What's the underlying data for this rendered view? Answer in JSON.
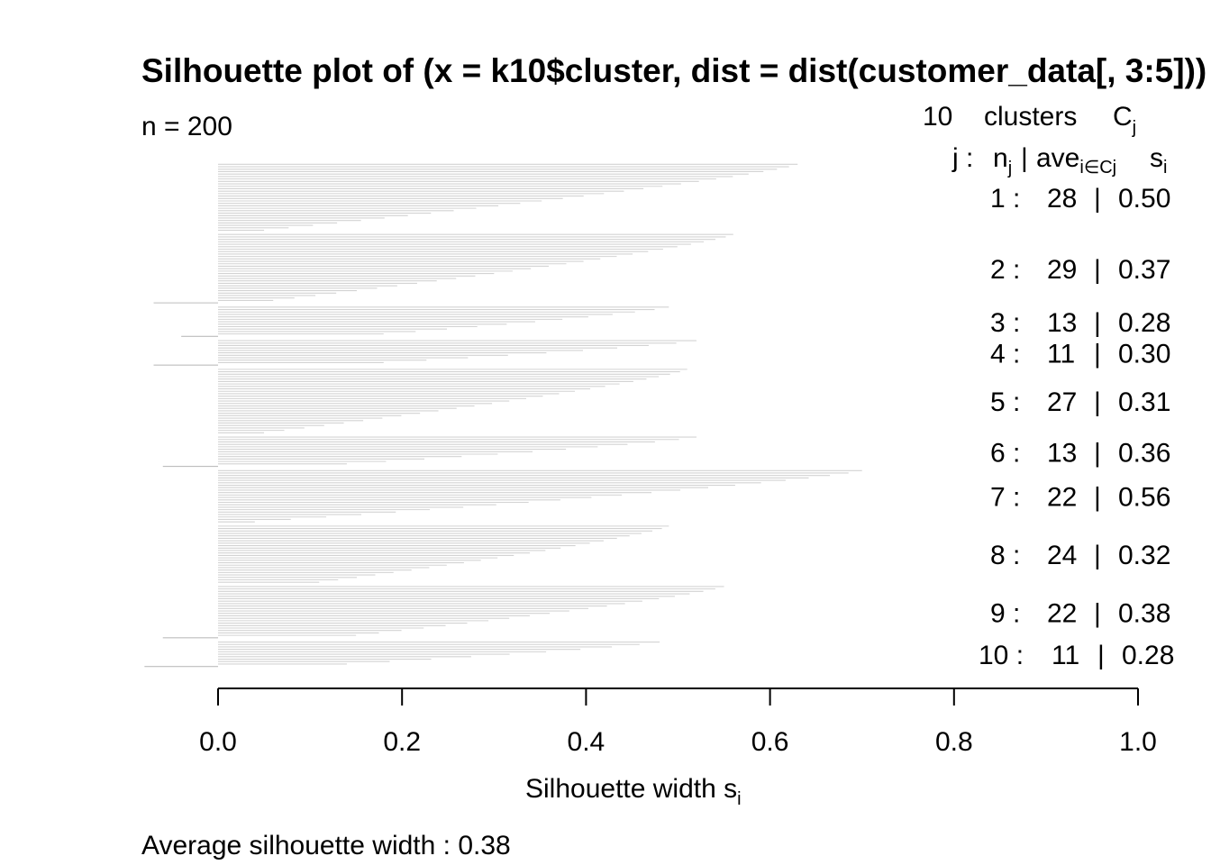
{
  "chart_data": {
    "type": "bar",
    "orientation": "horizontal",
    "title": "Silhouette plot of (x = k10$cluster, dist = dist(customer_data[, 3:5]))",
    "n_label": "n = 200",
    "header": {
      "k_count": "10",
      "clusters_word": "clusters",
      "c_letter": "C",
      "c_sub": "j",
      "col_j": "j :",
      "col_n": "n",
      "col_n_sub": "j",
      "col_sep": "|",
      "col_ave": "ave",
      "col_ave_sub": "i∈Cj",
      "col_s": "s",
      "col_s_sub": "i"
    },
    "xlabel": "Silhouette width s",
    "xlabel_sub": "i",
    "footer": "Average silhouette width :  0.38",
    "xlim": [
      0,
      1
    ],
    "xticks": [
      "0.0",
      "0.2",
      "0.4",
      "0.6",
      "0.8",
      "1.0"
    ],
    "bar_color": "#d3d3d3",
    "clusters": [
      {
        "label": "1 :",
        "n": "28",
        "ave": "0.50",
        "min": 0.05,
        "max": 0.63,
        "neg": []
      },
      {
        "label": "2 :",
        "n": "29",
        "ave": "0.37",
        "min": 0.06,
        "max": 0.56,
        "neg": [
          -0.07
        ]
      },
      {
        "label": "3 :",
        "n": "13",
        "ave": "0.28",
        "min": 0.18,
        "max": 0.49,
        "neg": [
          -0.04
        ]
      },
      {
        "label": "4 :",
        "n": "11",
        "ave": "0.30",
        "min": 0.18,
        "max": 0.52,
        "neg": [
          -0.07
        ]
      },
      {
        "label": "5 :",
        "n": "27",
        "ave": "0.31",
        "min": 0.05,
        "max": 0.51,
        "neg": []
      },
      {
        "label": "6 :",
        "n": "13",
        "ave": "0.36",
        "min": 0.14,
        "max": 0.52,
        "neg": [
          -0.06
        ]
      },
      {
        "label": "7 :",
        "n": "22",
        "ave": "0.56",
        "min": 0.04,
        "max": 0.7,
        "neg": []
      },
      {
        "label": "8 :",
        "n": "24",
        "ave": "0.32",
        "min": 0.11,
        "max": 0.49,
        "neg": []
      },
      {
        "label": "9 :",
        "n": "22",
        "ave": "0.38",
        "min": 0.15,
        "max": 0.55,
        "neg": [
          -0.06
        ]
      },
      {
        "label": "10 :",
        "n": "11",
        "ave": "0.28",
        "min": 0.14,
        "max": 0.48,
        "neg": [
          -0.08
        ]
      }
    ]
  }
}
